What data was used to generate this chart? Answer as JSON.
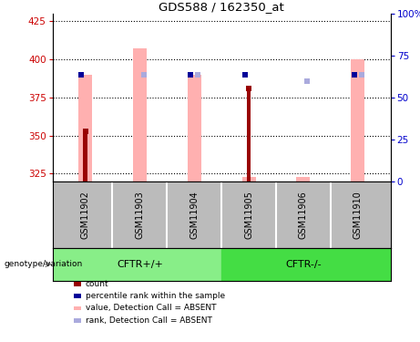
{
  "title": "GDS588 / 162350_at",
  "samples": [
    "GSM11902",
    "GSM11903",
    "GSM11904",
    "GSM11905",
    "GSM11906",
    "GSM11910"
  ],
  "group_labels": [
    "CFTR+/+",
    "CFTR-/-"
  ],
  "ylim_left": [
    320,
    430
  ],
  "ylim_right": [
    0,
    100
  ],
  "yticks_left": [
    325,
    350,
    375,
    400,
    425
  ],
  "yticks_right": [
    0,
    25,
    50,
    75,
    100
  ],
  "pink_bar_bottom": 320,
  "pink_bar_top": [
    390,
    407,
    390,
    323,
    323,
    400
  ],
  "count_values": [
    353,
    null,
    null,
    381,
    null,
    null
  ],
  "count_line_bottom": [
    320,
    null,
    null,
    320,
    null,
    null
  ],
  "percentile_values": [
    390,
    null,
    390,
    390,
    null,
    390
  ],
  "rank_absent_values": [
    null,
    390,
    390,
    null,
    386,
    390
  ],
  "pink_color": "#ffb0b0",
  "count_color": "#990000",
  "percentile_color": "#000099",
  "rank_absent_color": "#aaaadd",
  "bar_width": 0.25,
  "sample_area_color": "#bbbbbb",
  "group1_color": "#88ee88",
  "group2_color": "#44dd44",
  "left_tick_color": "#cc0000",
  "right_tick_color": "#0000cc",
  "legend_items": [
    "count",
    "percentile rank within the sample",
    "value, Detection Call = ABSENT",
    "rank, Detection Call = ABSENT"
  ],
  "legend_colors": [
    "#990000",
    "#000099",
    "#ffb0b0",
    "#aaaadd"
  ]
}
